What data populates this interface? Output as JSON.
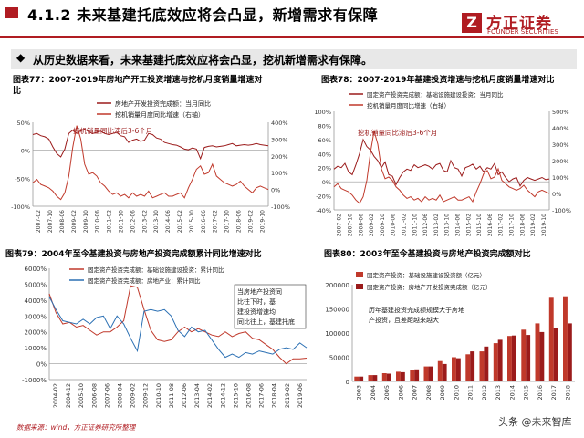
{
  "header": {
    "title": "4.1.2 未来基建托底效应将会凸显，新增需求有保障",
    "logo_mark": "Z",
    "logo_name": "方正证券",
    "logo_en": "FOUNDER SECURITIES"
  },
  "bullet": {
    "icon": "◆",
    "text": "从历史数据来看，未来基建托底效应将会凸显，挖机新增需求有保障。"
  },
  "colors": {
    "brand": "#b01c22",
    "red": "#c0392b",
    "blue": "#2a6fb3",
    "darkred": "#9b1b1b"
  },
  "chart_data": [
    {
      "id": "fig77",
      "type": "line",
      "title_l1": "图表77：2007-2019年房地产开工投资增速与挖机月度销量增速对",
      "title_l2": "比",
      "legend": [
        "房地产开发投资完成额：当月同比",
        "挖机销量月度同比增速（右轴）"
      ],
      "annotation": "挖机销量同比滞后3-6个月",
      "ylim": [
        -100,
        50
      ],
      "yticks": [
        "50%",
        "0%",
        "-50%",
        "-100%"
      ],
      "ylim_r": [
        -100,
        400
      ],
      "yticks_r": [
        "400%",
        "300%",
        "200%",
        "100%",
        "0%",
        "-100%"
      ],
      "xticks": [
        "2007-02",
        "2007-10",
        "2008-06",
        "2009-02",
        "2009-10",
        "2010-06",
        "2011-02",
        "2011-10",
        "2012-06",
        "2013-02",
        "2013-10",
        "2014-06",
        "2015-02",
        "2015-10",
        "2016-06",
        "2017-02",
        "2017-10",
        "2018-06",
        "2019-02",
        "2019-10"
      ],
      "series": [
        {
          "name": "房地产开发投资完成额：当月同比",
          "axis": "left",
          "values": [
            28,
            30,
            26,
            24,
            20,
            6,
            -6,
            -12,
            2,
            30,
            36,
            30,
            35,
            38,
            33,
            30,
            32,
            34,
            30,
            28,
            30,
            32,
            26,
            24,
            14,
            18,
            20,
            16,
            18,
            30,
            28,
            22,
            20,
            14,
            12,
            10,
            9,
            6,
            2,
            1,
            4,
            2,
            -15,
            5,
            7,
            8,
            6,
            7,
            8,
            10,
            12,
            8,
            9,
            10,
            9,
            10,
            12,
            10,
            9,
            8
          ]
        },
        {
          "name": "挖机销量月度同比增速（右轴）",
          "axis": "right",
          "values": [
            40,
            60,
            30,
            20,
            10,
            -10,
            -40,
            -60,
            -20,
            80,
            250,
            380,
            300,
            150,
            90,
            100,
            80,
            40,
            20,
            -10,
            -30,
            -20,
            -40,
            -30,
            -50,
            -20,
            -40,
            -30,
            -40,
            -10,
            -50,
            -40,
            -30,
            -20,
            -40,
            -40,
            -30,
            -20,
            -50,
            10,
            60,
            120,
            140,
            90,
            100,
            150,
            80,
            60,
            40,
            30,
            20,
            30,
            50,
            20,
            0,
            -20,
            10,
            20,
            10,
            0
          ]
        }
      ]
    },
    {
      "id": "fig78",
      "type": "line",
      "title_l1": "图表78：2007-2019年基建投资增速与挖机月度销量增速对比",
      "legend": [
        "固定资产投资完成额：基础设施建设投资：当月同比",
        "挖机销量月度同比增速（右轴）"
      ],
      "annotation": "挖机销量同比滞后3-6个月",
      "ylim": [
        -40,
        100
      ],
      "yticks": [
        "100%",
        "80%",
        "60%",
        "40%",
        "20%",
        "0%",
        "-20%",
        "-40%"
      ],
      "ylim_r": [
        -100,
        500
      ],
      "yticks_r": [
        "500%",
        "400%",
        "300%",
        "200%",
        "100%",
        "0%",
        "-100%"
      ],
      "xticks": [
        "2007-02",
        "2007-10",
        "2008-06",
        "2009-02",
        "2009-10",
        "2010-06",
        "2011-02",
        "2011-10",
        "2012-06",
        "2013-02",
        "2013-10",
        "2014-06",
        "2015-02",
        "2015-10",
        "2016-06",
        "2017-02",
        "2017-10",
        "2018-06",
        "2019-02",
        "2019-10"
      ],
      "series": [
        {
          "name": "固定资产投资完成额：基础设施建设投资：当月同比",
          "axis": "left",
          "values": [
            18,
            22,
            20,
            26,
            14,
            10,
            24,
            40,
            60,
            50,
            45,
            36,
            30,
            20,
            28,
            10,
            8,
            -4,
            6,
            14,
            18,
            16,
            24,
            20,
            22,
            24,
            22,
            18,
            24,
            26,
            16,
            14,
            30,
            20,
            18,
            8,
            20,
            22,
            25,
            18,
            22,
            14,
            20,
            18,
            26,
            10,
            14,
            6,
            0,
            4,
            6,
            -6,
            2,
            6,
            4,
            2,
            4,
            6,
            3,
            4
          ]
        },
        {
          "name": "挖机销量月度同比增速（右轴）",
          "axis": "right",
          "values": [
            40,
            60,
            30,
            20,
            10,
            -10,
            -40,
            -60,
            -20,
            80,
            250,
            380,
            300,
            150,
            90,
            100,
            80,
            40,
            20,
            -10,
            -30,
            -20,
            -40,
            -30,
            -50,
            -20,
            -40,
            -30,
            -40,
            -10,
            -50,
            -40,
            -30,
            -20,
            -40,
            -40,
            -30,
            -20,
            -50,
            10,
            60,
            120,
            140,
            90,
            100,
            150,
            80,
            60,
            40,
            30,
            20,
            30,
            50,
            20,
            0,
            -20,
            10,
            20,
            10,
            0
          ]
        }
      ]
    },
    {
      "id": "fig79",
      "type": "line",
      "title_l1": "图表79：2004年至今基建投资与房地产投资完成额累计同比增速对比",
      "legend": [
        "固定资产投资完成额：基础设施建设投资：累计同比",
        "固定资产投资完成额：房地产业：累计同比"
      ],
      "annotation": "当房地产投资同比往下时，基建投资增速均同比往上，基建托底",
      "ylim": [
        -1000,
        6000
      ],
      "yticks": [
        "6000%",
        "5000%",
        "4000%",
        "3000%",
        "2000%",
        "1000%",
        "0%",
        "-1000%"
      ],
      "xticks": [
        "2004-02",
        "2004-12",
        "2005-10",
        "2006-08",
        "2007-06",
        "2008-04",
        "2009-02",
        "2009-12",
        "2010-10",
        "2011-08",
        "2012-06",
        "2013-04",
        "2014-02",
        "2014-12",
        "2015-10",
        "2016-08",
        "2017-06",
        "2018-04",
        "2019-02",
        "2019-06"
      ],
      "series": [
        {
          "name": "固定资产投资完成额：基础设施建设投资：累计同比",
          "axis": "left",
          "values": [
            4400,
            3200,
            2500,
            2600,
            2300,
            2400,
            2100,
            1800,
            2000,
            2000,
            2300,
            2700,
            4900,
            4800,
            3400,
            2100,
            1500,
            1400,
            1500,
            2000,
            2300,
            2000,
            2200,
            2000,
            1800,
            1700,
            2000,
            1700,
            1900,
            2000,
            1600,
            1500,
            1200,
            900,
            400,
            0,
            300,
            300,
            350
          ]
        },
        {
          "name": "固定资产投资完成额：房地产业：累计同比",
          "axis": "left",
          "values": [
            4200,
            3400,
            2700,
            2600,
            2500,
            2800,
            2500,
            2900,
            3000,
            2200,
            3000,
            2500,
            1600,
            800,
            3300,
            3400,
            3300,
            3400,
            3000,
            2100,
            1700,
            2300,
            2000,
            2100,
            1500,
            900,
            400,
            600,
            400,
            700,
            600,
            800,
            700,
            600,
            900,
            1000,
            900,
            1300,
            1000
          ]
        }
      ]
    },
    {
      "id": "fig80",
      "type": "bar",
      "title_l1": "图表80：2003年至今基建投资与房地产投资完成额对比",
      "legend": [
        "固定资产投资：基础设施建设投资额（亿元）",
        "固定资产投资：房地产开发投资完成额（亿元）"
      ],
      "annotation": "历年基建投资完成额规模大于房地产投资，且差距越来越大",
      "ylim": [
        0,
        200000
      ],
      "yticks": [
        "200000",
        "150000",
        "100000",
        "50000",
        "0"
      ],
      "categories": [
        "2003",
        "2004",
        "2005",
        "2006",
        "2007",
        "2008",
        "2009",
        "2010",
        "2011",
        "2012",
        "2013",
        "2014",
        "2015",
        "2016",
        "2017",
        "2018"
      ],
      "series": [
        {
          "name": "固定资产投资：基础设施建设投资额（亿元）",
          "values": [
            10000,
            13000,
            17000,
            20000,
            24000,
            31000,
            42000,
            50000,
            56000,
            62000,
            79000,
            94000,
            107000,
            120000,
            173000,
            176000
          ]
        },
        {
          "name": "固定资产投资：房地产开发投资完成额（亿元）",
          "values": [
            10000,
            13000,
            16000,
            19000,
            25000,
            31000,
            36000,
            48000,
            62000,
            72000,
            86000,
            95000,
            96000,
            102000,
            110000,
            120000
          ]
        }
      ]
    }
  ],
  "footer": {
    "source": "数据来源：wind，方正证券研究所整理"
  },
  "watermark": {
    "text": "头条 @未来智库"
  }
}
